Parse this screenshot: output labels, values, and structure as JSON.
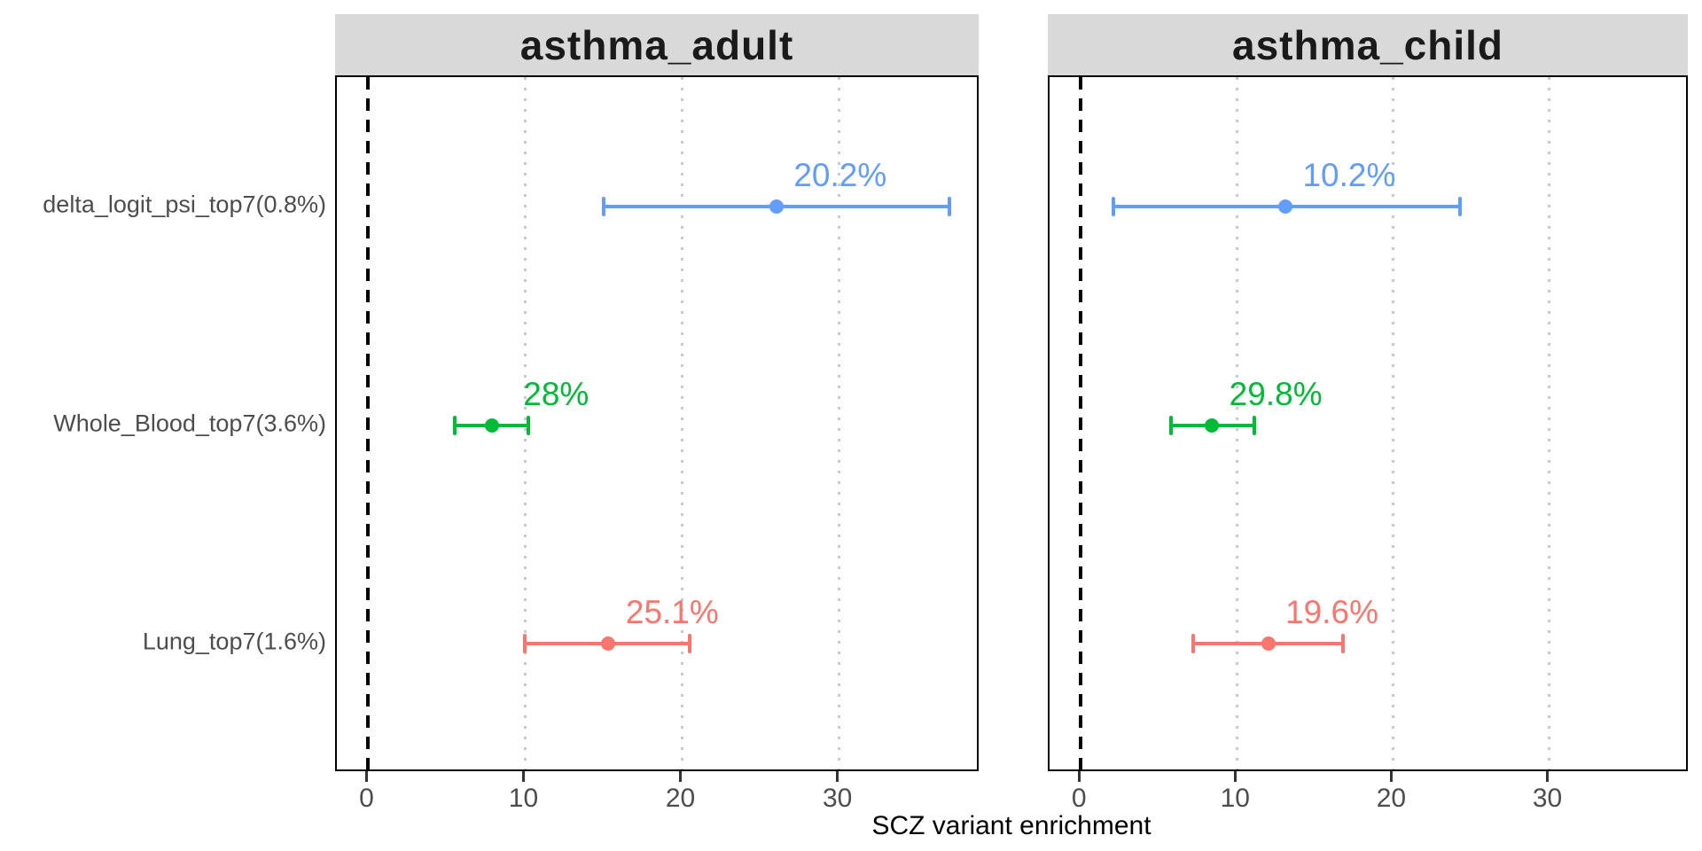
{
  "chart_data": {
    "type": "scatter",
    "subtype": "horizontal-errorbar-forest-plot",
    "title": "",
    "xlabel": "SCZ variant enrichment",
    "ylabel": "",
    "xlim": [
      -2,
      39
    ],
    "xticks": [
      0,
      10,
      20,
      30
    ],
    "gridlines_x": [
      10,
      20,
      30
    ],
    "grid_style": "dotted-vertical-only",
    "zero_reference_line": 0,
    "zero_line_style": "dashed-black",
    "legend_position": "none",
    "categories": [
      "delta_logit_psi_top7(0.8%)",
      "Whole_Blood_top7(3.6%)",
      "Lung_top7(1.6%)"
    ],
    "category_colors": [
      "#619CFF",
      "#00BA38",
      "#F8766D"
    ],
    "panels": [
      {
        "title": "asthma_adult",
        "series": [
          {
            "category": "delta_logit_psi_top7(0.8%)",
            "color": "#619CFF",
            "estimate": 26.0,
            "ci_low": 15.0,
            "ci_high": 37.0,
            "label": "20.2%"
          },
          {
            "category": "Whole_Blood_top7(3.6%)",
            "color": "#00BA38",
            "estimate": 7.9,
            "ci_low": 5.5,
            "ci_high": 10.2,
            "label": "28%"
          },
          {
            "category": "Lung_top7(1.6%)",
            "color": "#F8766D",
            "estimate": 15.3,
            "ci_low": 10.0,
            "ci_high": 20.5,
            "label": "25.1%"
          }
        ]
      },
      {
        "title": "asthma_child",
        "series": [
          {
            "category": "delta_logit_psi_top7(0.8%)",
            "color": "#619CFF",
            "estimate": 13.1,
            "ci_low": 2.1,
            "ci_high": 24.3,
            "label": "10.2%"
          },
          {
            "category": "Whole_Blood_top7(3.6%)",
            "color": "#00BA38",
            "estimate": 8.4,
            "ci_low": 5.8,
            "ci_high": 11.1,
            "label": "29.8%"
          },
          {
            "category": "Lung_top7(1.6%)",
            "color": "#F8766D",
            "estimate": 12.0,
            "ci_low": 7.2,
            "ci_high": 16.8,
            "label": "19.6%"
          }
        ]
      }
    ],
    "colors": {
      "strip_background": "#d9d9d9",
      "panel_border": "#000000",
      "gridline": "#c9c9c9",
      "axis_text": "#4d4d4d",
      "blue": "#619CFF",
      "green": "#00BA38",
      "red": "#F8766D"
    }
  }
}
